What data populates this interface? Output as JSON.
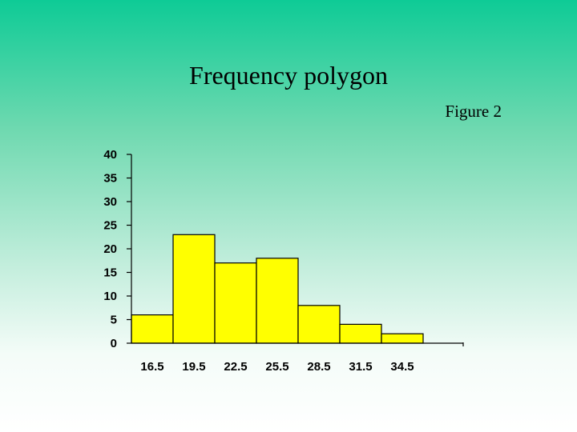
{
  "slide": {
    "title": "Frequency polygon",
    "figure_label": "Figure 2"
  },
  "colors": {
    "bar_fill": "#ffff00",
    "bar_stroke": "#000000",
    "background_top": "#0ecb96",
    "background_bottom": "#ffffff"
  },
  "chart_data": {
    "type": "bar",
    "categories": [
      "16.5",
      "19.5",
      "22.5",
      "25.5",
      "28.5",
      "31.5",
      "34.5"
    ],
    "values": [
      6,
      23,
      17,
      18,
      8,
      4,
      2
    ],
    "yticks": [
      "0",
      "5",
      "10",
      "15",
      "20",
      "25",
      "30",
      "35",
      "40"
    ],
    "ylim": [
      0,
      40
    ],
    "title": "",
    "xlabel": "",
    "ylabel": "",
    "grid": false,
    "legend": "none"
  }
}
